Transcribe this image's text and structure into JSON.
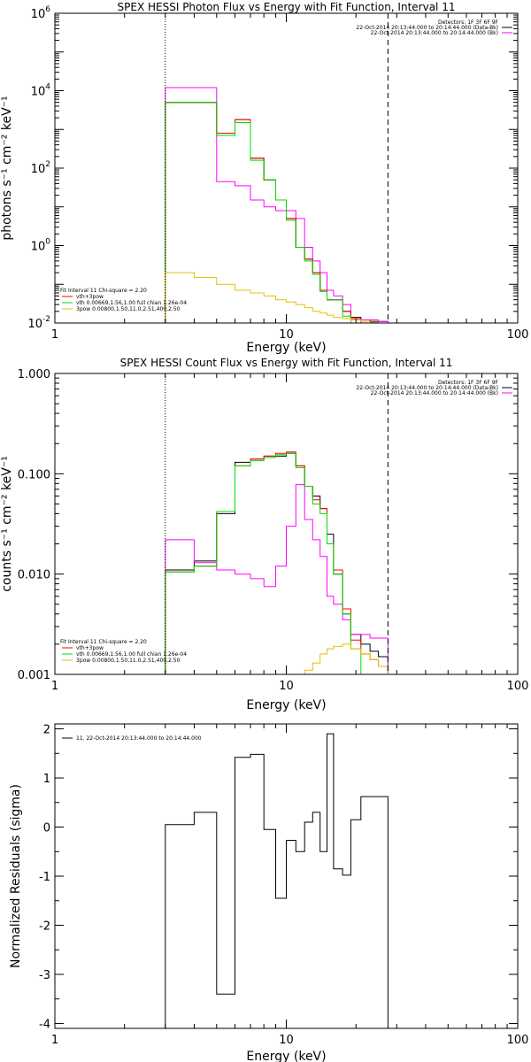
{
  "chart_data": [
    {
      "type": "line",
      "title": "SPEX HESSI Photon Flux vs Energy with Fit Function, Interval 11",
      "xlabel": "Energy (keV)",
      "ylabel": "photons s⁻¹ cm⁻² keV⁻¹",
      "xscale": "log",
      "yscale": "log",
      "xlim": [
        1,
        100
      ],
      "ylim": [
        0.01,
        1000000
      ],
      "x_tick_labels": [
        "1",
        "10",
        "100"
      ],
      "y_tick_labels": [
        {
          "label": "10",
          "sup": "-2",
          "value": 0.01
        },
        {
          "label": "10",
          "sup": "0",
          "value": 1
        },
        {
          "label": "10",
          "sup": "2",
          "value": 100
        },
        {
          "label": "10",
          "sup": "4",
          "value": 10000
        },
        {
          "label": "10",
          "sup": "6",
          "value": 1000000
        }
      ],
      "vlines": [
        {
          "x": 3.0,
          "style": "dotted"
        },
        {
          "x": 27.5,
          "style": "dashed"
        }
      ],
      "legend_right": [
        {
          "text": "Detectors: 1F 3F 6F 9F",
          "color": null
        },
        {
          "text": "22-Oct-2014 20:13:44.000 to 20:14:44.000 (Data-Bk)",
          "color": "#000000"
        },
        {
          "text": "22-Oct-2014 20:13:44.000 to 20:14:44.000 (Bk)",
          "color": "#ff00ff"
        }
      ],
      "legend_left": [
        {
          "text": "Fit Interval 11    Chi-square = 2.20",
          "color": null
        },
        {
          "text": "vth+3pow",
          "color": "#ff0000"
        },
        {
          "text": "vth 0.00669,1.56,1.00  full chian 1.26e-04",
          "color": "#00dd00"
        },
        {
          "text": "3pow 0.00800,1.50,11.0,2.51,400,2.50",
          "color": "#e8c000"
        }
      ],
      "edges": [
        3.0,
        4.0,
        5.0,
        6.0,
        7.0,
        8.0,
        9.0,
        10.0,
        11.0,
        12.0,
        13.0,
        14.0,
        15.0,
        16.0,
        17.5,
        19.0,
        21.0,
        23.0,
        25.0,
        27.5
      ],
      "series": [
        {
          "name": "Data-Bk",
          "color": "#000000",
          "values": [
            5000,
            5000,
            800,
            1800,
            180,
            50,
            15,
            5,
            0.9,
            0.45,
            0.2,
            0.07,
            0.04,
            0.04,
            0.02,
            0.014,
            0.012,
            0.011,
            0.011
          ]
        },
        {
          "name": "Bk",
          "color": "#ff00ff",
          "values": [
            12000,
            12000,
            45,
            35,
            15,
            10,
            8,
            8,
            5,
            0.9,
            0.4,
            0.2,
            0.07,
            0.05,
            0.03,
            0.013,
            0.012,
            0.012,
            0.011
          ]
        },
        {
          "name": "vth+3pow",
          "color": "#ff0000",
          "values": [
            5000,
            5000,
            800,
            1800,
            180,
            50,
            15,
            5,
            0.9,
            0.45,
            0.2,
            0.07,
            0.04,
            0.04,
            0.02,
            0.013,
            0.01,
            0.01,
            0.01
          ]
        },
        {
          "name": "vth",
          "color": "#00dd00",
          "values": [
            5000,
            5000,
            700,
            1500,
            160,
            50,
            15,
            4.5,
            0.9,
            0.4,
            0.18,
            0.065,
            0.04,
            0.04,
            0.015,
            0.009,
            0.007,
            0.006,
            0.005
          ]
        },
        {
          "name": "3pow",
          "color": "#e8c000",
          "values": [
            0.2,
            0.15,
            0.1,
            0.07,
            0.06,
            0.05,
            0.04,
            0.035,
            0.03,
            0.025,
            0.02,
            0.018,
            0.016,
            0.014,
            0.013,
            0.012,
            0.011,
            0.0105,
            0.01
          ]
        }
      ]
    },
    {
      "type": "line",
      "title": "SPEX HESSI Count Flux vs Energy with Fit Function, Interval 11",
      "xlabel": "Energy (keV)",
      "ylabel": "counts s⁻¹ cm⁻² keV⁻¹",
      "xscale": "log",
      "yscale": "log",
      "xlim": [
        1,
        100
      ],
      "ylim": [
        0.001,
        1.0
      ],
      "x_tick_labels": [
        "1",
        "10",
        "100"
      ],
      "y_tick_labels": [
        {
          "label": "0.001",
          "value": 0.001
        },
        {
          "label": "0.010",
          "value": 0.01
        },
        {
          "label": "0.100",
          "value": 0.1
        },
        {
          "label": "1.000",
          "value": 1.0
        }
      ],
      "vlines": [
        {
          "x": 3.0,
          "style": "dotted"
        },
        {
          "x": 27.5,
          "style": "dashed"
        }
      ],
      "legend_right": [
        {
          "text": "Detectors: 1F 3F 6F 9F",
          "color": null
        },
        {
          "text": "22-Oct-2014 20:13:44.000 to 20:14:44.000 (Data-Bk)",
          "color": "#000000"
        },
        {
          "text": "22-Oct-2014 20:13:44.000 to 20:14:44.000 (Bk)",
          "color": "#ff00ff"
        }
      ],
      "legend_left": [
        {
          "text": "Fit Interval 11    Chi-square = 2.20",
          "color": null
        },
        {
          "text": "vth+3pow",
          "color": "#ff0000"
        },
        {
          "text": "vth 0.00669,1.56,1.00  full chian 1.26e-04",
          "color": "#00dd00"
        },
        {
          "text": "3pow 0.00800,1.50,11.0,2.51,400,2.50",
          "color": "#e8c000"
        }
      ],
      "edges": [
        3.0,
        4.0,
        5.0,
        6.0,
        7.0,
        8.0,
        9.0,
        10.0,
        11.0,
        12.0,
        13.0,
        14.0,
        15.0,
        16.0,
        17.5,
        19.0,
        21.0,
        23.0,
        25.0,
        27.5
      ],
      "series": [
        {
          "name": "Data-Bk",
          "color": "#000000",
          "values": [
            0.011,
            0.0135,
            0.04,
            0.13,
            0.14,
            0.15,
            0.15,
            0.16,
            0.12,
            0.075,
            0.06,
            0.045,
            0.025,
            0.01,
            0.004,
            0.0025,
            0.002,
            0.0017,
            0.0015
          ]
        },
        {
          "name": "Bk",
          "color": "#ff00ff",
          "values": [
            0.022,
            0.013,
            0.011,
            0.01,
            0.009,
            0.0075,
            0.012,
            0.03,
            0.078,
            0.035,
            0.022,
            0.015,
            0.006,
            0.005,
            0.0035,
            0.0025,
            0.0025,
            0.0023,
            0.0023
          ]
        },
        {
          "name": "vth+3pow",
          "color": "#ff0000",
          "values": [
            0.0105,
            0.012,
            0.042,
            0.12,
            0.14,
            0.15,
            0.16,
            0.165,
            0.12,
            0.075,
            0.055,
            0.045,
            0.02,
            0.011,
            0.0045,
            0.0022,
            0.0016,
            0.0014,
            0.0012
          ]
        },
        {
          "name": "vth",
          "color": "#00dd00",
          "values": [
            0.0105,
            0.012,
            0.042,
            0.12,
            0.135,
            0.145,
            0.155,
            0.16,
            0.115,
            0.075,
            0.05,
            0.04,
            0.02,
            0.01,
            0.004,
            0.0018,
            0.0009,
            0.0009,
            0.0009
          ]
        },
        {
          "name": "3pow",
          "color": "#e8c000",
          "values": [
            0.0009,
            0.0009,
            0.0009,
            0.0009,
            0.0009,
            0.0009,
            0.0009,
            0.0009,
            0.0009,
            0.0011,
            0.0013,
            0.0016,
            0.0018,
            0.0019,
            0.002,
            0.0018,
            0.0016,
            0.0014,
            0.0012
          ]
        }
      ]
    },
    {
      "type": "line",
      "title": "",
      "xlabel": "Energy (keV)",
      "ylabel": "Normalized Residuals (sigma)",
      "xscale": "log",
      "yscale": "linear",
      "xlim": [
        1,
        100
      ],
      "ylim": [
        -4.1,
        2.1
      ],
      "x_tick_labels": [
        "1",
        "10",
        "100"
      ],
      "y_tick_labels": [
        {
          "label": "-4",
          "value": -4
        },
        {
          "label": "-3",
          "value": -3
        },
        {
          "label": "-2",
          "value": -2
        },
        {
          "label": "-1",
          "value": -1
        },
        {
          "label": "0",
          "value": 0
        },
        {
          "label": "1",
          "value": 1
        },
        {
          "label": "2",
          "value": 2
        }
      ],
      "legend_right": [],
      "legend_left": [
        {
          "text": "11. 22-Oct-2014 20:13:44.000 to 20:14:44.000",
          "color": "#000000"
        }
      ],
      "edges": [
        3.0,
        4.0,
        5.0,
        6.0,
        7.0,
        8.0,
        9.0,
        10.0,
        11.0,
        12.0,
        13.0,
        14.0,
        15.0,
        16.0,
        17.5,
        19.0,
        21.0,
        23.0,
        25.0,
        27.5
      ],
      "series": [
        {
          "name": "11",
          "color": "#000000",
          "values": [
            0.05,
            0.3,
            -3.4,
            1.42,
            1.48,
            -0.05,
            -1.45,
            -0.27,
            -0.5,
            0.1,
            0.3,
            -0.5,
            1.9,
            -0.85,
            -0.98,
            0.15,
            0.62,
            0.62,
            0.62
          ],
          "start_from_axis_bottom": true
        }
      ]
    }
  ]
}
